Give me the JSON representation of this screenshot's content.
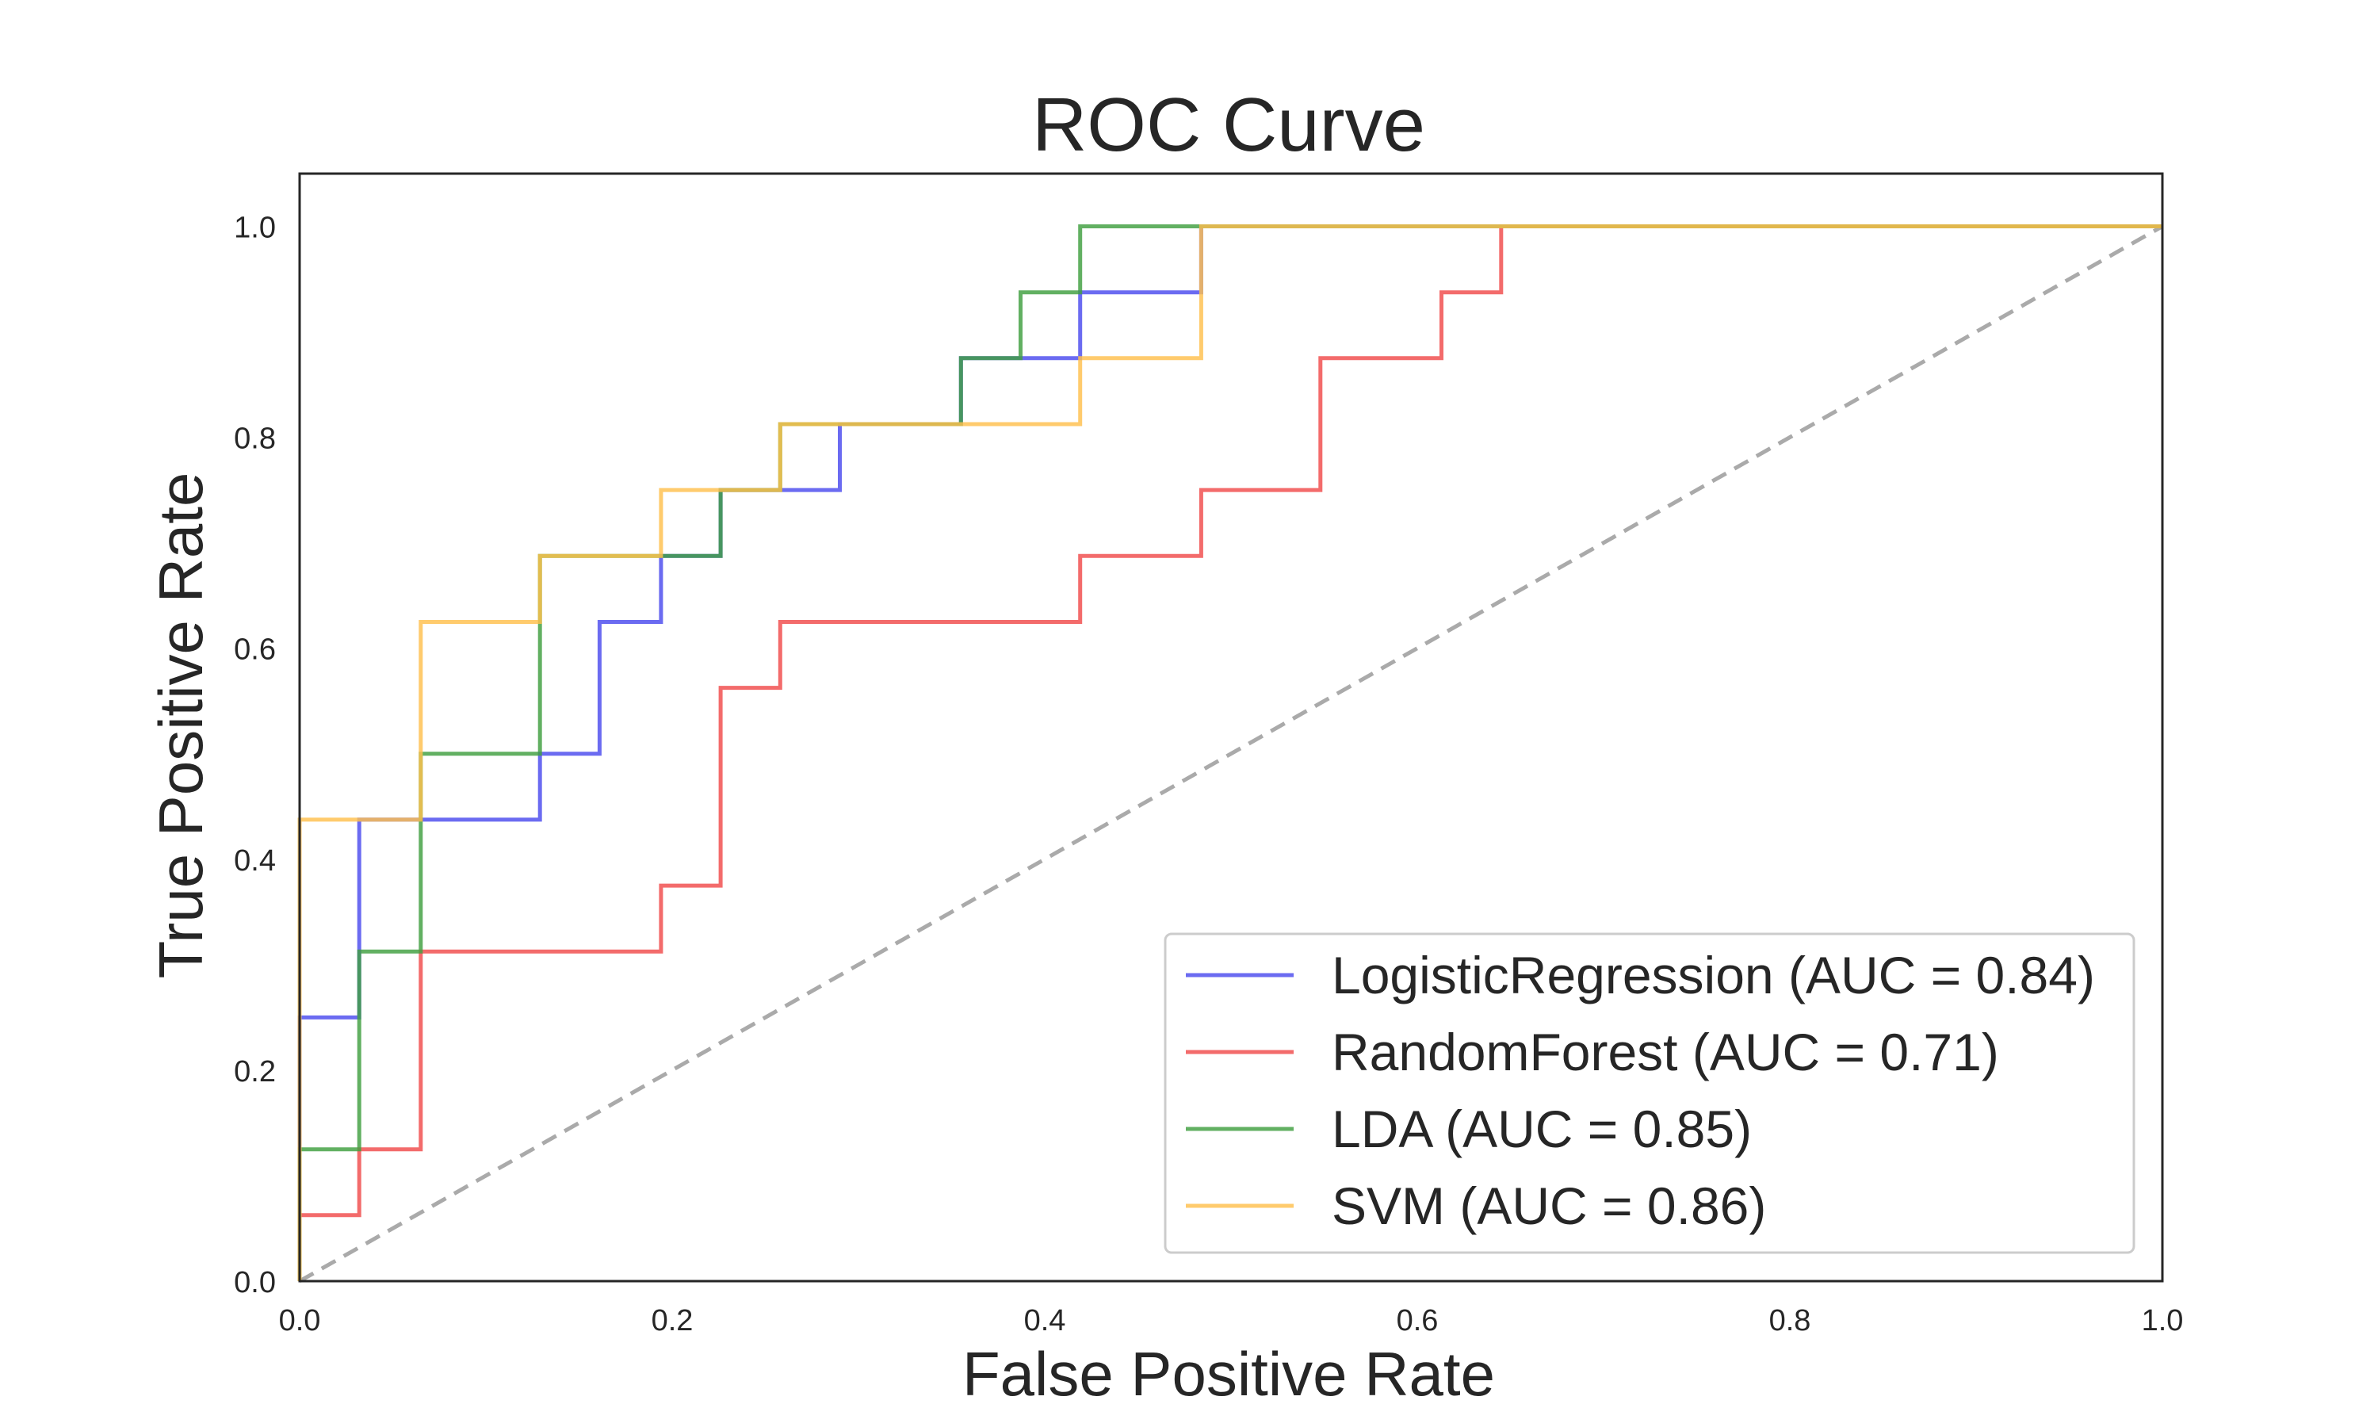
{
  "chart_data": {
    "type": "line",
    "title": "ROC Curve",
    "xlabel": "False Positive Rate",
    "ylabel": "True Positive Rate",
    "xlim": [
      0.0,
      1.0
    ],
    "ylim": [
      0.0,
      1.05
    ],
    "xticks": [
      "0.0",
      "0.2",
      "0.4",
      "0.6",
      "0.8",
      "1.0"
    ],
    "yticks": [
      "0.0",
      "0.2",
      "0.4",
      "0.6",
      "0.8",
      "1.0"
    ],
    "grid": false,
    "legend_position": "lower-right",
    "series": [
      {
        "name": "LogisticRegression (AUC = 0.84)",
        "color": "#4a4aee",
        "x": [
          0,
          0,
          0.032,
          0.032,
          0.129,
          0.129,
          0.161,
          0.161,
          0.194,
          0.194,
          0.226,
          0.226,
          0.258,
          0.258,
          0.29,
          0.29,
          0.355,
          0.355,
          0.419,
          0.419,
          0.484,
          0.484,
          1.0
        ],
        "y": [
          0,
          0.25,
          0.25,
          0.4375,
          0.4375,
          0.5,
          0.5,
          0.625,
          0.625,
          0.6875,
          0.6875,
          0.75,
          0.75,
          0.75,
          0.75,
          0.8125,
          0.8125,
          0.875,
          0.875,
          0.9375,
          0.9375,
          1.0,
          1.0
        ]
      },
      {
        "name": "RandomForest (AUC = 0.71)",
        "color": "#f04b4b",
        "x": [
          0,
          0,
          0.032,
          0.032,
          0.065,
          0.065,
          0.194,
          0.194,
          0.226,
          0.226,
          0.258,
          0.258,
          0.419,
          0.419,
          0.484,
          0.484,
          0.548,
          0.548,
          0.613,
          0.613,
          0.645,
          0.645,
          1.0
        ],
        "y": [
          0,
          0.0625,
          0.0625,
          0.125,
          0.125,
          0.3125,
          0.3125,
          0.375,
          0.375,
          0.5625,
          0.5625,
          0.625,
          0.625,
          0.6875,
          0.6875,
          0.75,
          0.75,
          0.875,
          0.875,
          0.9375,
          0.9375,
          1.0,
          1.0
        ]
      },
      {
        "name": "LDA (AUC = 0.85)",
        "color": "#3f9f3f",
        "x": [
          0,
          0,
          0.032,
          0.032,
          0.065,
          0.065,
          0.129,
          0.129,
          0.194,
          0.194,
          0.226,
          0.226,
          0.258,
          0.258,
          0.355,
          0.355,
          0.387,
          0.387,
          0.419,
          0.419,
          1.0
        ],
        "y": [
          0,
          0.125,
          0.125,
          0.3125,
          0.3125,
          0.5,
          0.5,
          0.6875,
          0.6875,
          0.6875,
          0.6875,
          0.75,
          0.75,
          0.8125,
          0.8125,
          0.875,
          0.875,
          0.9375,
          0.9375,
          1.0,
          1.0
        ]
      },
      {
        "name": "SVM (AUC = 0.86)",
        "color": "#ffc04d",
        "x": [
          0,
          0,
          0.065,
          0.065,
          0.129,
          0.129,
          0.194,
          0.194,
          0.258,
          0.258,
          0.419,
          0.419,
          0.484,
          0.484,
          1.0
        ],
        "y": [
          0,
          0.4375,
          0.4375,
          0.625,
          0.625,
          0.6875,
          0.6875,
          0.75,
          0.75,
          0.8125,
          0.8125,
          0.875,
          0.875,
          1.0,
          1.0
        ]
      }
    ],
    "reference_line": {
      "x": [
        0,
        1
      ],
      "y": [
        0,
        1
      ],
      "color": "#aaaaaa",
      "style": "dashed"
    }
  }
}
